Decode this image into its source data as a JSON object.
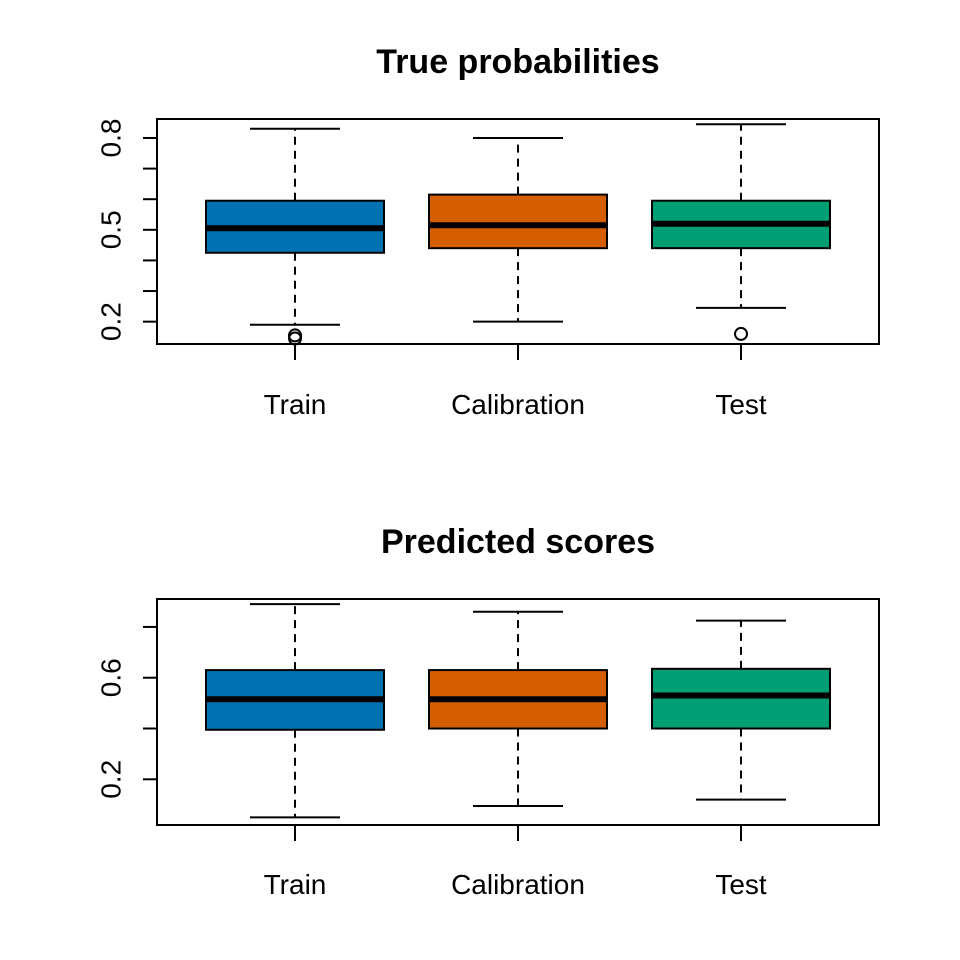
{
  "chart_data": [
    {
      "type": "boxplot",
      "title": "True probabilities",
      "xlabel": "",
      "ylabel": "",
      "categories": [
        "Train",
        "Calibration",
        "Test"
      ],
      "colors": [
        "#0072B2",
        "#D55E00",
        "#009E73"
      ],
      "ylim": [
        0.127,
        0.862
      ],
      "yticks": [
        0.2,
        0.3,
        0.4,
        0.5,
        0.6,
        0.7,
        0.8
      ],
      "ytick_labels": [
        "0.2",
        "",
        "",
        "0.5",
        "",
        "",
        "0.8"
      ],
      "boxes": [
        {
          "whisker_low": 0.19,
          "q1": 0.425,
          "median": 0.505,
          "q3": 0.595,
          "whisker_high": 0.83,
          "outliers": [
            0.155,
            0.145
          ]
        },
        {
          "whisker_low": 0.2,
          "q1": 0.44,
          "median": 0.515,
          "q3": 0.615,
          "whisker_high": 0.8,
          "outliers": []
        },
        {
          "whisker_low": 0.245,
          "q1": 0.44,
          "median": 0.52,
          "q3": 0.595,
          "whisker_high": 0.845,
          "outliers": [
            0.16
          ]
        }
      ]
    },
    {
      "type": "boxplot",
      "title": "Predicted scores",
      "xlabel": "",
      "ylabel": "",
      "categories": [
        "Train",
        "Calibration",
        "Test"
      ],
      "colors": [
        "#0072B2",
        "#D55E00",
        "#009E73"
      ],
      "ylim": [
        0.02,
        0.91
      ],
      "yticks": [
        0.2,
        0.4,
        0.6,
        0.8
      ],
      "ytick_labels": [
        "0.2",
        "",
        "0.6",
        ""
      ],
      "boxes": [
        {
          "whisker_low": 0.05,
          "q1": 0.395,
          "median": 0.515,
          "q3": 0.63,
          "whisker_high": 0.89,
          "outliers": []
        },
        {
          "whisker_low": 0.095,
          "q1": 0.4,
          "median": 0.515,
          "q3": 0.63,
          "whisker_high": 0.86,
          "outliers": []
        },
        {
          "whisker_low": 0.12,
          "q1": 0.4,
          "median": 0.53,
          "q3": 0.635,
          "whisker_high": 0.825,
          "outliers": []
        }
      ]
    }
  ]
}
